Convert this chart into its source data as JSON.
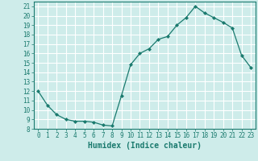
{
  "x": [
    0,
    1,
    2,
    3,
    4,
    5,
    6,
    7,
    8,
    9,
    10,
    11,
    12,
    13,
    14,
    15,
    16,
    17,
    18,
    19,
    20,
    21,
    22,
    23
  ],
  "y": [
    12,
    10.5,
    9.5,
    9,
    8.8,
    8.8,
    8.7,
    8.4,
    8.3,
    11.5,
    14.8,
    16.0,
    16.5,
    17.5,
    17.8,
    19.0,
    19.8,
    21.0,
    20.3,
    19.8,
    19.3,
    18.7,
    15.8,
    14.5
  ],
  "xlabel": "Humidex (Indice chaleur)",
  "xlim": [
    -0.5,
    23.5
  ],
  "ylim": [
    8,
    21.5
  ],
  "yticks": [
    8,
    9,
    10,
    11,
    12,
    13,
    14,
    15,
    16,
    17,
    18,
    19,
    20,
    21
  ],
  "xticks": [
    0,
    1,
    2,
    3,
    4,
    5,
    6,
    7,
    8,
    9,
    10,
    11,
    12,
    13,
    14,
    15,
    16,
    17,
    18,
    19,
    20,
    21,
    22,
    23
  ],
  "line_color": "#1a7a6e",
  "marker": "D",
  "marker_size": 2.0,
  "bg_color": "#ceecea",
  "grid_color": "#ffffff",
  "label_fontsize": 7,
  "tick_fontsize": 5.5
}
